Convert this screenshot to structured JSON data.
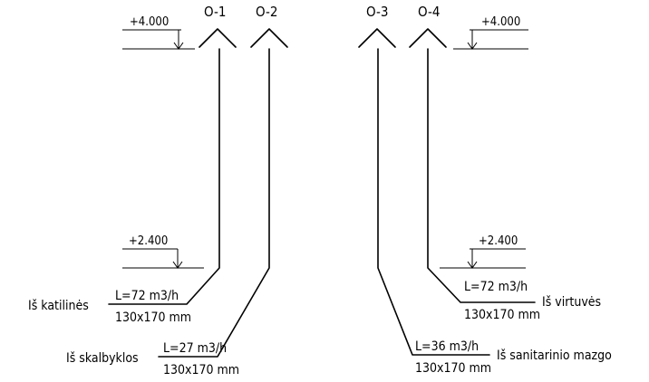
{
  "levels": {
    "left_top": "+4.000",
    "right_top": "+4.000",
    "left_bottom": "+2.400",
    "right_bottom": "+2.400"
  },
  "ducts": [
    {
      "id": "O-1",
      "flow": "L=72 m3/h",
      "size": "130x170 mm",
      "source": "Iš katilinės"
    },
    {
      "id": "O-2",
      "flow": "L=27 m3/h",
      "size": "130x170 mm",
      "source": "Iš skalbyklos"
    },
    {
      "id": "O-3",
      "flow": "L=36 m3/h",
      "size": "130x170 mm",
      "source": "Iš sanitarinio mazgo"
    },
    {
      "id": "O-4",
      "flow": "L=72 m3/h",
      "size": "130x170 mm",
      "source": "Iš virtuvės"
    }
  ]
}
